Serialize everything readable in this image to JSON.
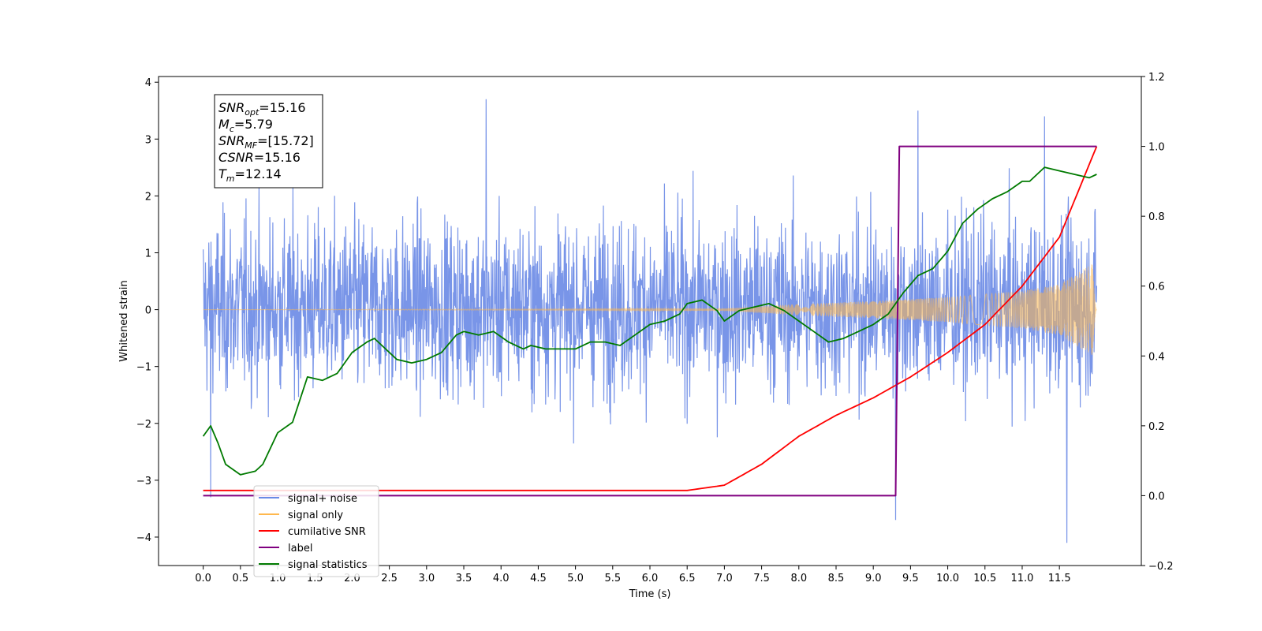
{
  "chart_data": {
    "type": "line",
    "xlabel": "Time (s)",
    "ylabel": "Whitened strain",
    "xlim": [
      -0.6,
      12.6
    ],
    "ylim": [
      -4.5,
      4.1
    ],
    "y2lim": [
      -0.2,
      1.2
    ],
    "x_ticks": [
      "0.0",
      "0.5",
      "1.0",
      "1.5",
      "2.0",
      "2.5",
      "3.0",
      "3.5",
      "4.0",
      "4.5",
      "5.0",
      "5.5",
      "6.0",
      "6.5",
      "7.0",
      "7.5",
      "8.0",
      "8.5",
      "9.0",
      "9.5",
      "10.0",
      "10.5",
      "11.0",
      "11.5"
    ],
    "y_ticks": [
      "4",
      "3",
      "2",
      "1",
      "0",
      "−1",
      "−2",
      "−3",
      "−4"
    ],
    "y2_ticks": [
      "1.2",
      "1.0",
      "0.8",
      "0.6",
      "0.4",
      "0.2",
      "0.0",
      "−0.2"
    ],
    "legend_position": "lower-left",
    "legend": [
      {
        "label": "signal+ noise",
        "color": "#6a8ae6"
      },
      {
        "label": "signal only",
        "color": "#ffb84d"
      },
      {
        "label": "cumilative SNR",
        "color": "#ff0000"
      },
      {
        "label": "label",
        "color": "#800080"
      },
      {
        "label": "signal statistics",
        "color": "#007a00"
      }
    ],
    "annotation_lines": [
      {
        "base": "SNR",
        "sub": "opt",
        "rest": "=15.16"
      },
      {
        "base": "M",
        "sub": "c",
        "rest": "=5.79"
      },
      {
        "base": "SNR",
        "sub": "MF",
        "rest": "=[15.72]"
      },
      {
        "base": "CSNR",
        "sub": "",
        "rest": "=15.16"
      },
      {
        "base": "T",
        "sub": "m",
        "rest": "=12.14"
      }
    ],
    "series": [
      {
        "name": "signal+ noise",
        "axis": "left",
        "color": "#6a8ae6",
        "description_values": {
          "noise_band": [
            -1.9,
            2.0
          ],
          "peaks": [
            [
              0.1,
              -3.3
            ],
            [
              3.8,
              3.7
            ],
            [
              9.3,
              -3.7
            ],
            [
              9.6,
              3.5
            ],
            [
              11.6,
              -4.1
            ],
            [
              11.3,
              3.4
            ]
          ]
        }
      },
      {
        "name": "signal only",
        "axis": "left",
        "color": "#ffb84d",
        "envelope": [
          [
            0.0,
            0.0
          ],
          [
            7.0,
            0.02
          ],
          [
            8.0,
            0.1
          ],
          [
            9.0,
            0.15
          ],
          [
            10.0,
            0.22
          ],
          [
            11.0,
            0.33
          ],
          [
            11.5,
            0.45
          ],
          [
            12.0,
            0.85
          ]
        ]
      },
      {
        "name": "cumilative SNR",
        "axis": "right",
        "color": "#ff0000",
        "x": [
          0.0,
          6.5,
          7.0,
          7.5,
          8.0,
          8.5,
          9.0,
          9.5,
          10.0,
          10.5,
          11.0,
          11.5,
          12.0
        ],
        "values": [
          0.015,
          0.015,
          0.03,
          0.09,
          0.17,
          0.23,
          0.28,
          0.34,
          0.41,
          0.49,
          0.6,
          0.74,
          1.0
        ]
      },
      {
        "name": "label",
        "axis": "right",
        "color": "#800080",
        "x": [
          0.0,
          9.3,
          9.35,
          12.0
        ],
        "values": [
          0.0,
          0.0,
          1.0,
          1.0
        ]
      },
      {
        "name": "signal statistics",
        "axis": "right",
        "color": "#007a00",
        "x": [
          0.0,
          0.1,
          0.2,
          0.3,
          0.5,
          0.7,
          0.8,
          1.0,
          1.2,
          1.4,
          1.6,
          1.8,
          1.9,
          2.0,
          2.2,
          2.3,
          2.4,
          2.6,
          2.8,
          3.0,
          3.2,
          3.4,
          3.5,
          3.7,
          3.9,
          4.1,
          4.3,
          4.4,
          4.6,
          4.8,
          5.0,
          5.2,
          5.4,
          5.6,
          5.8,
          6.0,
          6.2,
          6.4,
          6.5,
          6.7,
          6.9,
          7.0,
          7.2,
          7.4,
          7.6,
          7.8,
          8.0,
          8.2,
          8.4,
          8.6,
          8.8,
          9.0,
          9.2,
          9.4,
          9.6,
          9.8,
          10.0,
          10.2,
          10.4,
          10.6,
          10.8,
          11.0,
          11.1,
          11.3,
          11.5,
          11.7,
          11.9,
          12.0
        ],
        "values": [
          0.17,
          0.2,
          0.15,
          0.09,
          0.06,
          0.07,
          0.09,
          0.18,
          0.21,
          0.34,
          0.33,
          0.35,
          0.38,
          0.41,
          0.44,
          0.45,
          0.43,
          0.39,
          0.38,
          0.39,
          0.41,
          0.46,
          0.47,
          0.46,
          0.47,
          0.44,
          0.42,
          0.43,
          0.42,
          0.42,
          0.42,
          0.44,
          0.44,
          0.43,
          0.46,
          0.49,
          0.5,
          0.52,
          0.55,
          0.56,
          0.53,
          0.5,
          0.53,
          0.54,
          0.55,
          0.53,
          0.5,
          0.47,
          0.44,
          0.45,
          0.47,
          0.49,
          0.52,
          0.58,
          0.63,
          0.65,
          0.7,
          0.78,
          0.82,
          0.85,
          0.87,
          0.9,
          0.9,
          0.94,
          0.93,
          0.92,
          0.91,
          0.92
        ]
      }
    ]
  }
}
